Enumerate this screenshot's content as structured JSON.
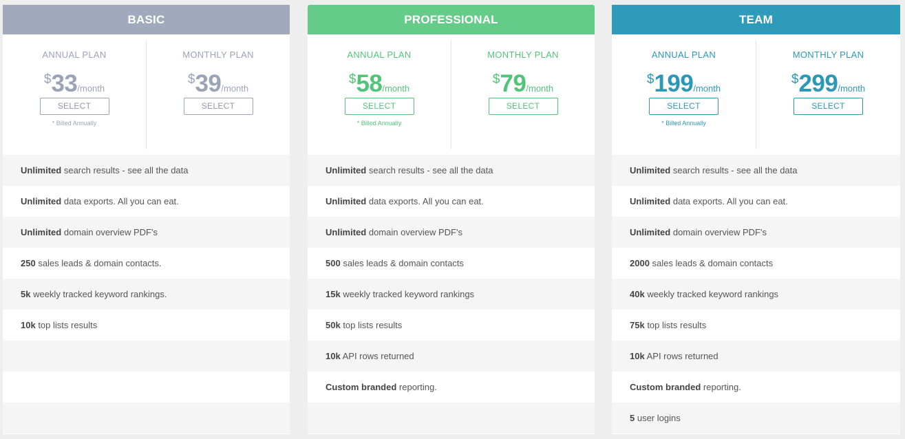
{
  "plans": [
    {
      "id": "basic",
      "name": "BASIC",
      "annual": {
        "label": "ANNUAL PLAN",
        "currency": "$",
        "amount": "33",
        "period": "/month",
        "button": "SELECT",
        "note": "* Billed Annually"
      },
      "monthly": {
        "label": "MONTHLY PLAN",
        "currency": "$",
        "amount": "39",
        "period": "/month",
        "button": "SELECT"
      },
      "features": [
        {
          "bold": "Unlimited",
          "text": " search results - see all the data"
        },
        {
          "bold": "Unlimited",
          "text": " data exports. All you can eat."
        },
        {
          "bold": "Unlimited",
          "text": " domain overview PDF's"
        },
        {
          "bold": "250",
          "text": " sales leads & domain contacts."
        },
        {
          "bold": "5k",
          "text": " weekly tracked keyword rankings."
        },
        {
          "bold": "10k",
          "text": " top lists results"
        },
        {
          "bold": "",
          "text": ""
        },
        {
          "bold": "",
          "text": ""
        },
        {
          "bold": "",
          "text": ""
        }
      ]
    },
    {
      "id": "professional",
      "name": "PROFESSIONAL",
      "annual": {
        "label": "ANNUAL PLAN",
        "currency": "$",
        "amount": "58",
        "period": "/month",
        "button": "SELECT",
        "note": "* Billed Annually"
      },
      "monthly": {
        "label": "MONTHLY PLAN",
        "currency": "$",
        "amount": "79",
        "period": "/month",
        "button": "SELECT"
      },
      "features": [
        {
          "bold": "Unlimited",
          "text": " search results - see all the data"
        },
        {
          "bold": "Unlimited",
          "text": " data exports. All you can eat."
        },
        {
          "bold": "Unlimited",
          "text": " domain overview PDF's"
        },
        {
          "bold": "500",
          "text": " sales leads & domain contacts"
        },
        {
          "bold": "15k",
          "text": " weekly tracked keyword rankings"
        },
        {
          "bold": "50k",
          "text": " top lists results"
        },
        {
          "bold": "10k",
          "text": " API rows returned"
        },
        {
          "bold": "Custom branded",
          "text": " reporting."
        },
        {
          "bold": "",
          "text": ""
        }
      ]
    },
    {
      "id": "team",
      "name": "TEAM",
      "annual": {
        "label": "ANNUAL PLAN",
        "currency": "$",
        "amount": "199",
        "period": "/month",
        "button": "SELECT",
        "note": "* Billed Annually"
      },
      "monthly": {
        "label": "MONTHLY PLAN",
        "currency": "$",
        "amount": "299",
        "period": "/month",
        "button": "SELECT"
      },
      "features": [
        {
          "bold": "Unlimited",
          "text": " search results - see all the data"
        },
        {
          "bold": "Unlimited",
          "text": " data exports. All you can eat."
        },
        {
          "bold": "Unlimited",
          "text": " domain overview PDF's"
        },
        {
          "bold": "2000",
          "text": " sales leads & domain contacts"
        },
        {
          "bold": "40k",
          "text": " weekly tracked keyword rankings"
        },
        {
          "bold": "75k",
          "text": " top lists results"
        },
        {
          "bold": "10k",
          "text": " API rows returned"
        },
        {
          "bold": "Custom branded",
          "text": " reporting."
        },
        {
          "bold": "5",
          "text": " user logins"
        }
      ]
    }
  ],
  "colors": {
    "basic": "#a1a9bc",
    "professional": "#65cb88",
    "team": "#2e9bbb"
  }
}
